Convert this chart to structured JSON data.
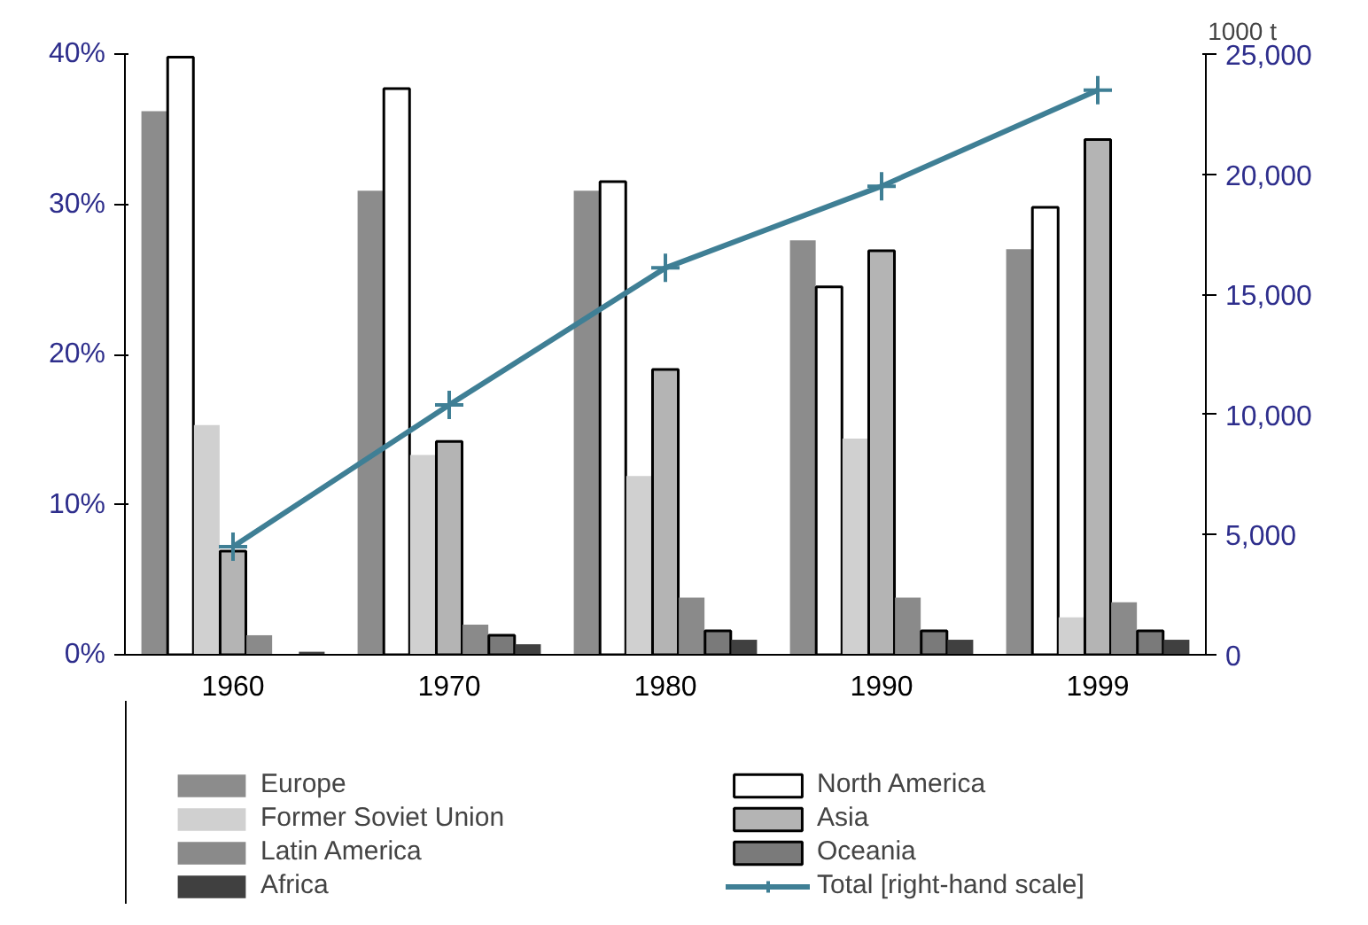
{
  "chart_data": {
    "type": "bar",
    "categories": [
      "1960",
      "1970",
      "1980",
      "1990",
      "1999"
    ],
    "y2label": "1000 t",
    "series": [
      {
        "name": "Europe",
        "color": "#8c8c8c",
        "values": [
          36.2,
          30.9,
          30.9,
          27.6,
          27.0
        ]
      },
      {
        "name": "North America",
        "color": "#ffffff",
        "values": [
          39.8,
          37.7,
          31.5,
          24.5,
          29.8
        ]
      },
      {
        "name": "Former Soviet Union",
        "color": "#d0d0d0",
        "values": [
          15.3,
          13.3,
          11.9,
          14.4,
          2.5
        ]
      },
      {
        "name": "Asia",
        "color": "#b4b4b4",
        "values": [
          6.9,
          14.2,
          19.0,
          26.9,
          34.3
        ]
      },
      {
        "name": "Latin America",
        "color": "#8a8a8a",
        "values": [
          1.3,
          2.0,
          3.8,
          3.8,
          3.5
        ]
      },
      {
        "name": "Oceania",
        "color": "#7a7a7a",
        "values": [
          null,
          1.3,
          1.6,
          1.6,
          1.6
        ]
      },
      {
        "name": "Africa",
        "color": "#404040",
        "values": [
          0.2,
          0.7,
          1.0,
          1.0,
          1.0
        ]
      },
      {
        "name": "Total [right-hand scale]",
        "type": "line",
        "axis": "y2",
        "color": "#3f7f95",
        "marker": "cross",
        "values": [
          4500,
          10400,
          16100,
          19500,
          23500
        ]
      }
    ],
    "ylim": [
      0,
      40
    ],
    "yticks": [
      {
        "value": 0,
        "label": "0%"
      },
      {
        "value": 10,
        "label": "10%"
      },
      {
        "value": 20,
        "label": "20%"
      },
      {
        "value": 30,
        "label": "30%"
      },
      {
        "value": 40,
        "label": "40%"
      }
    ],
    "y2lim": [
      0,
      25000
    ],
    "y2ticks": [
      {
        "value": 0,
        "label": "0"
      },
      {
        "value": 5000,
        "label": "5,000"
      },
      {
        "value": 10000,
        "label": "10,000"
      },
      {
        "value": 15000,
        "label": "15,000"
      },
      {
        "value": 20000,
        "label": "20,000"
      },
      {
        "value": 25000,
        "label": "25,000"
      }
    ],
    "grid": false,
    "legend": "bottom"
  }
}
